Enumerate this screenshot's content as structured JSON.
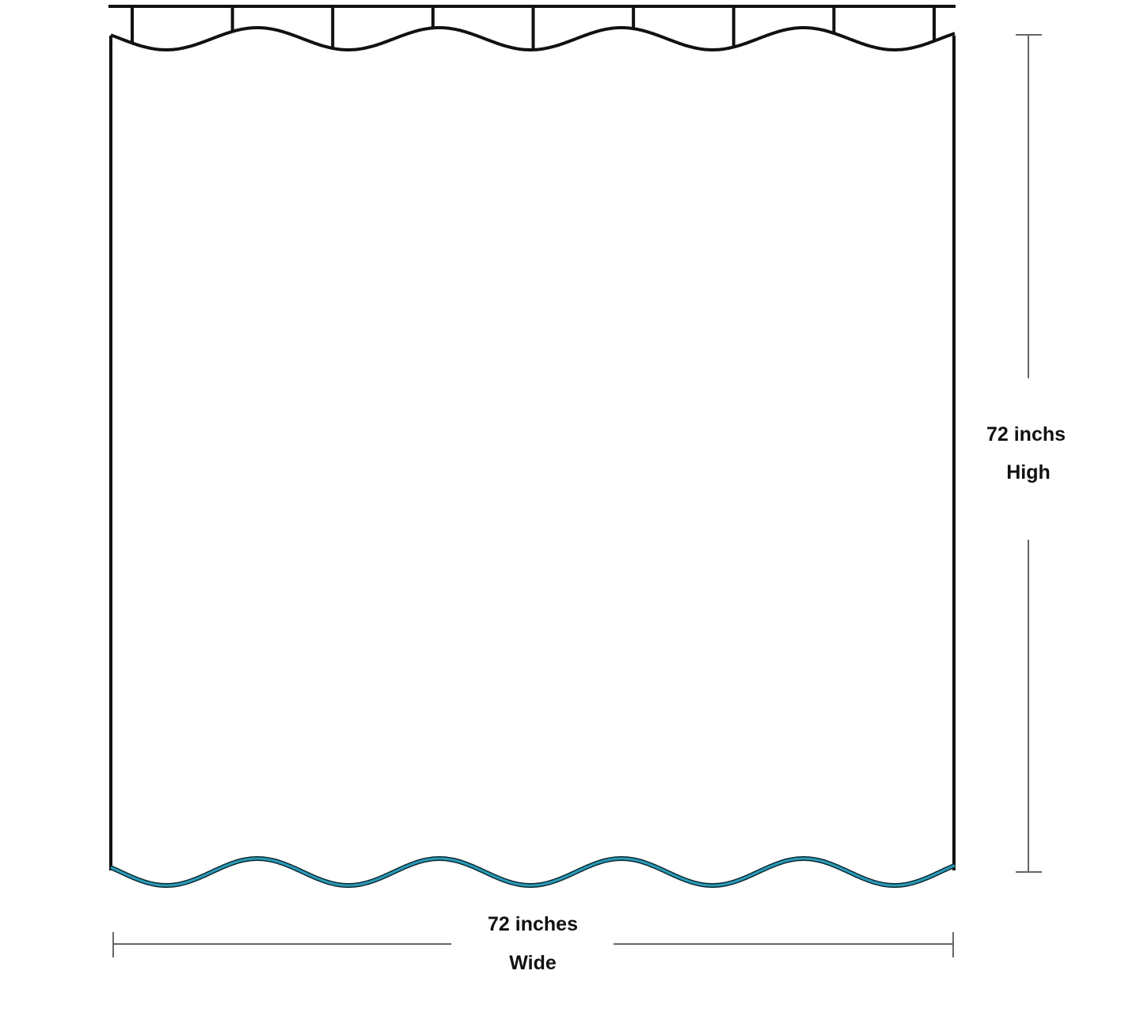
{
  "diagram": {
    "height_label": {
      "value": "72 inchs",
      "unit_word": "High"
    },
    "width_label": {
      "value": "72 inches",
      "unit_word": "Wide"
    },
    "hook_count": 9,
    "colors": {
      "outline": "#111111",
      "bottom_hem": "#2a9bb8",
      "dimension_line": "#666666"
    }
  }
}
